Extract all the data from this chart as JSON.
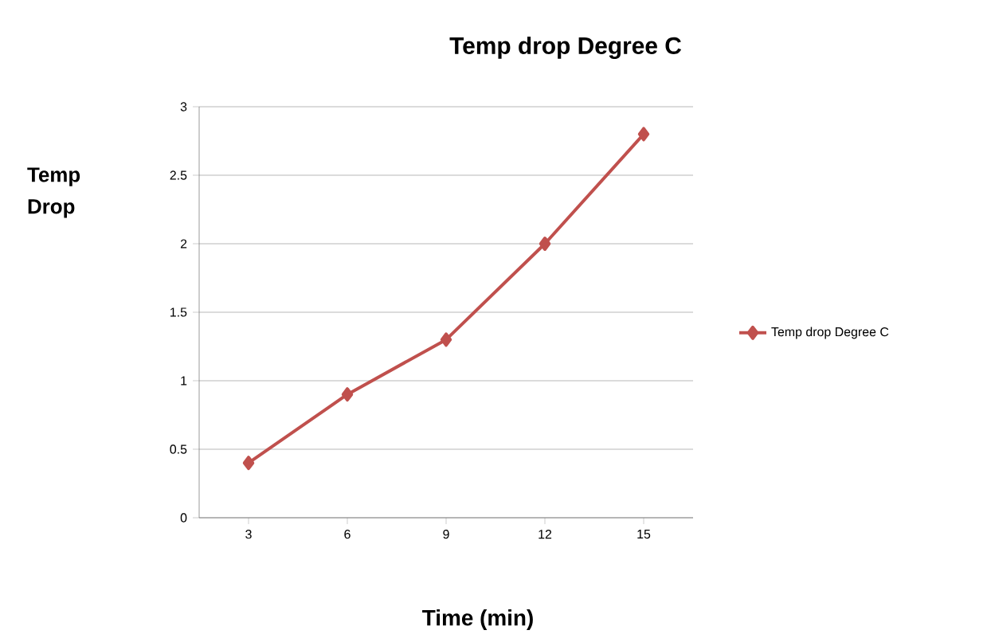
{
  "chart_data": {
    "type": "line",
    "title": "Temp drop Degree C",
    "xlabel": "Time (min)",
    "ylabel": "Temp Drop",
    "categories": [
      "3",
      "6",
      "9",
      "12",
      "15"
    ],
    "series": [
      {
        "name": "Temp drop Degree C",
        "color": "#c0504d",
        "values": [
          0.4,
          0.9,
          1.3,
          2,
          2.8
        ]
      }
    ],
    "ylim": [
      0,
      3
    ],
    "yticks": [
      0,
      0.5,
      1,
      1.5,
      2,
      2.5,
      3
    ],
    "grid": "y",
    "legend": "right",
    "marker": "diamond",
    "line_style": "solid"
  }
}
